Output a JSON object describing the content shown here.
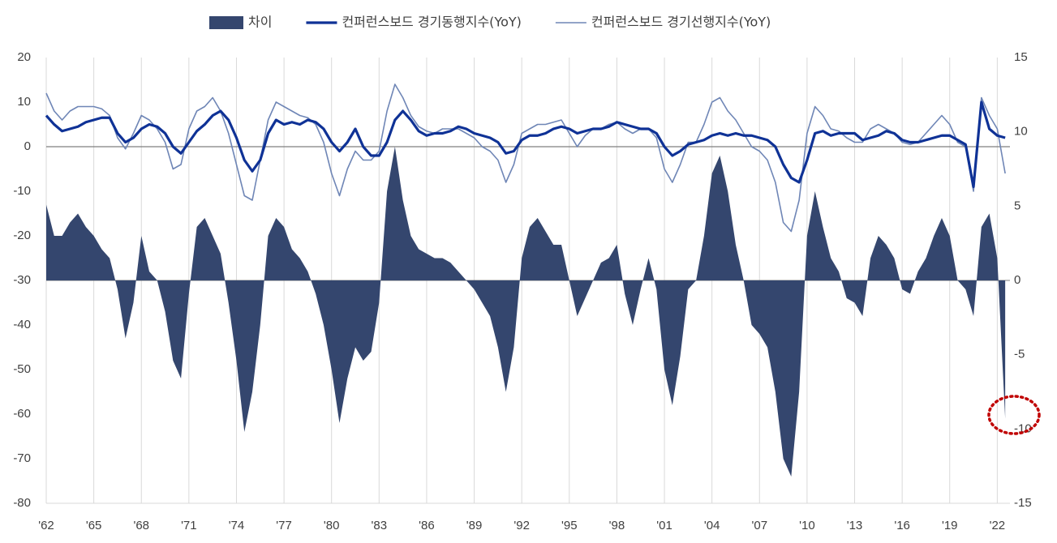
{
  "chart_data": {
    "type": "line",
    "x": [
      1962,
      1962.5,
      1963,
      1963.5,
      1964,
      1964.5,
      1965,
      1965.5,
      1966,
      1966.5,
      1967,
      1967.5,
      1968,
      1968.5,
      1969,
      1969.5,
      1970,
      1970.5,
      1971,
      1971.5,
      1972,
      1972.5,
      1973,
      1973.5,
      1974,
      1974.5,
      1975,
      1975.5,
      1976,
      1976.5,
      1977,
      1977.5,
      1978,
      1978.5,
      1979,
      1979.5,
      1980,
      1980.5,
      1981,
      1981.5,
      1982,
      1982.5,
      1983,
      1983.5,
      1984,
      1984.5,
      1985,
      1985.5,
      1986,
      1986.5,
      1987,
      1987.5,
      1988,
      1988.5,
      1989,
      1989.5,
      1990,
      1990.5,
      1991,
      1991.5,
      1992,
      1992.5,
      1993,
      1993.5,
      1994,
      1994.5,
      1995,
      1995.5,
      1996,
      1996.5,
      1997,
      1997.5,
      1998,
      1998.5,
      1999,
      1999.5,
      2000,
      2000.5,
      2001,
      2001.5,
      2002,
      2002.5,
      2003,
      2003.5,
      2004,
      2004.5,
      2005,
      2005.5,
      2006,
      2006.5,
      2007,
      2007.5,
      2008,
      2008.5,
      2009,
      2009.5,
      2010,
      2010.5,
      2011,
      2011.5,
      2012,
      2012.5,
      2013,
      2013.5,
      2014,
      2014.5,
      2015,
      2015.5,
      2016,
      2016.5,
      2017,
      2017.5,
      2018,
      2018.5,
      2019,
      2019.5,
      2020,
      2020.5,
      2021,
      2021.5,
      2022,
      2022.5
    ],
    "series": [
      {
        "name": "차이",
        "kind": "area",
        "axis": "y2",
        "color": "#34466e",
        "values": [
          5.1,
          3,
          3,
          3.9,
          4.5,
          3.6,
          3,
          2.1,
          1.5,
          -0.6,
          -3.9,
          -1.5,
          3,
          0.6,
          0,
          -2.1,
          -5.4,
          -6.6,
          -0.9,
          3.6,
          4.2,
          3,
          1.8,
          -1.5,
          -5.4,
          -10.2,
          -7.5,
          -3,
          3,
          4.2,
          3.6,
          2.1,
          1.5,
          0.6,
          -0.9,
          -3,
          -6,
          -9.6,
          -6.6,
          -4.5,
          -5.4,
          -4.8,
          -1.5,
          6,
          9,
          5.4,
          3,
          2.1,
          1.8,
          1.5,
          1.5,
          1.2,
          0.6,
          0,
          -0.6,
          -1.5,
          -2.4,
          -4.5,
          -7.5,
          -4.5,
          1.5,
          3.6,
          4.2,
          3.3,
          2.4,
          2.4,
          0,
          -2.4,
          -1.2,
          0,
          1.2,
          1.5,
          2.4,
          -0.9,
          -3,
          -0.6,
          1.5,
          -0.6,
          -6,
          -8.4,
          -5.1,
          -0.6,
          0,
          3,
          7.2,
          8.4,
          6,
          2.4,
          0,
          -3,
          -3.6,
          -4.5,
          -7.5,
          -12,
          -13.2,
          -7.5,
          3,
          6,
          3.6,
          1.5,
          0.6,
          -1.2,
          -1.5,
          -2.4,
          1.5,
          3,
          2.4,
          1.5,
          -0.6,
          -0.9,
          0.6,
          1.5,
          3,
          4.2,
          3,
          0,
          -0.6,
          -2.4,
          3.6,
          4.5,
          1.5,
          -9.3
        ]
      },
      {
        "name": "컨퍼런스보드 경기동행지수(YoY)",
        "kind": "line",
        "line_width": 3.2,
        "color": "#0f3296",
        "values": [
          7,
          5,
          3.5,
          4,
          4.5,
          5.5,
          6,
          6.5,
          6.5,
          3,
          1,
          2,
          4,
          5,
          4.5,
          3,
          0,
          -1.5,
          1,
          3.5,
          5,
          7,
          8,
          6,
          2,
          -3,
          -5.5,
          -3,
          3,
          6,
          5,
          5.5,
          5,
          6,
          5.5,
          4,
          1,
          -1,
          1,
          4,
          0,
          -2,
          -2,
          1,
          6,
          8,
          6,
          3.5,
          2.5,
          3,
          3,
          3.5,
          4.5,
          4,
          3,
          2.5,
          2,
          1,
          -1.5,
          -1,
          1.5,
          2.5,
          2.5,
          3,
          4,
          4.5,
          4,
          3,
          3.5,
          4,
          4,
          4.5,
          5.5,
          5,
          4.5,
          4,
          4,
          3,
          0,
          -2,
          -1,
          0.5,
          1,
          1.5,
          2.5,
          3,
          2.5,
          3,
          2.5,
          2.5,
          2,
          1.5,
          0,
          -4,
          -7,
          -8,
          -3,
          3,
          3.5,
          2.5,
          3,
          3,
          3,
          1.5,
          2,
          2.5,
          3.5,
          3,
          1.5,
          1,
          1,
          1.5,
          2,
          2.5,
          2.5,
          1.5,
          0.5,
          -9,
          10,
          4,
          2.5,
          2
        ]
      },
      {
        "name": "컨퍼런스보드 경기선행지수(YoY)",
        "kind": "line",
        "line_width": 1.6,
        "color": "#6f86b6",
        "values": [
          12,
          8,
          6,
          8,
          9,
          9,
          9,
          8.5,
          7,
          2,
          -0.5,
          3,
          7,
          6,
          4,
          1,
          -5,
          -4,
          4,
          8,
          9,
          11,
          8,
          3,
          -4,
          -11,
          -12,
          -3,
          6,
          10,
          9,
          8,
          7,
          6.5,
          5,
          1,
          -6,
          -11,
          -5,
          -1,
          -3,
          -3,
          -1,
          8,
          14,
          11,
          7,
          4.5,
          3.5,
          3,
          4,
          4,
          4,
          3,
          2,
          0,
          -1,
          -3,
          -8,
          -4,
          3,
          4,
          5,
          5,
          5.5,
          6,
          3,
          0,
          2.5,
          4,
          4,
          5,
          5.5,
          4,
          3,
          4,
          4,
          2,
          -5,
          -8,
          -4,
          1,
          1,
          5,
          10,
          11,
          8,
          6,
          3,
          0,
          -1,
          -3,
          -8,
          -17,
          -19,
          -12,
          3,
          9,
          7,
          4,
          3.5,
          2,
          1,
          1,
          4,
          5,
          4,
          3,
          1,
          0.5,
          1,
          3,
          5,
          7,
          5,
          1,
          0,
          -10,
          11,
          7,
          4,
          -6
        ]
      }
    ],
    "ylim": [
      -80,
      20
    ],
    "yticks": [
      -80,
      -70,
      -60,
      -50,
      -40,
      -30,
      -20,
      -10,
      0,
      10,
      20
    ],
    "y2lim": [
      -15,
      15
    ],
    "y2ticks": [
      -15,
      -10,
      -5,
      0,
      5,
      10,
      15
    ],
    "xlim": [
      1962,
      2022.8
    ],
    "xticks": [
      {
        "value": 1962,
        "label": "'62"
      },
      {
        "value": 1965,
        "label": "'65"
      },
      {
        "value": 1968,
        "label": "'68"
      },
      {
        "value": 1971,
        "label": "'71"
      },
      {
        "value": 1974,
        "label": "'74"
      },
      {
        "value": 1977,
        "label": "'77"
      },
      {
        "value": 1980,
        "label": "'80"
      },
      {
        "value": 1983,
        "label": "'83"
      },
      {
        "value": 1986,
        "label": "'86"
      },
      {
        "value": 1989,
        "label": "'89"
      },
      {
        "value": 1992,
        "label": "'92"
      },
      {
        "value": 1995,
        "label": "'95"
      },
      {
        "value": 1998,
        "label": "'98"
      },
      {
        "value": 2001,
        "label": "'01"
      },
      {
        "value": 2004,
        "label": "'04"
      },
      {
        "value": 2007,
        "label": "'07"
      },
      {
        "value": 2010,
        "label": "'10"
      },
      {
        "value": 2013,
        "label": "'13"
      },
      {
        "value": 2016,
        "label": "'16"
      },
      {
        "value": 2019,
        "label": "'19"
      },
      {
        "value": 2022,
        "label": "'22"
      }
    ],
    "grid": "x",
    "legend": "top"
  }
}
